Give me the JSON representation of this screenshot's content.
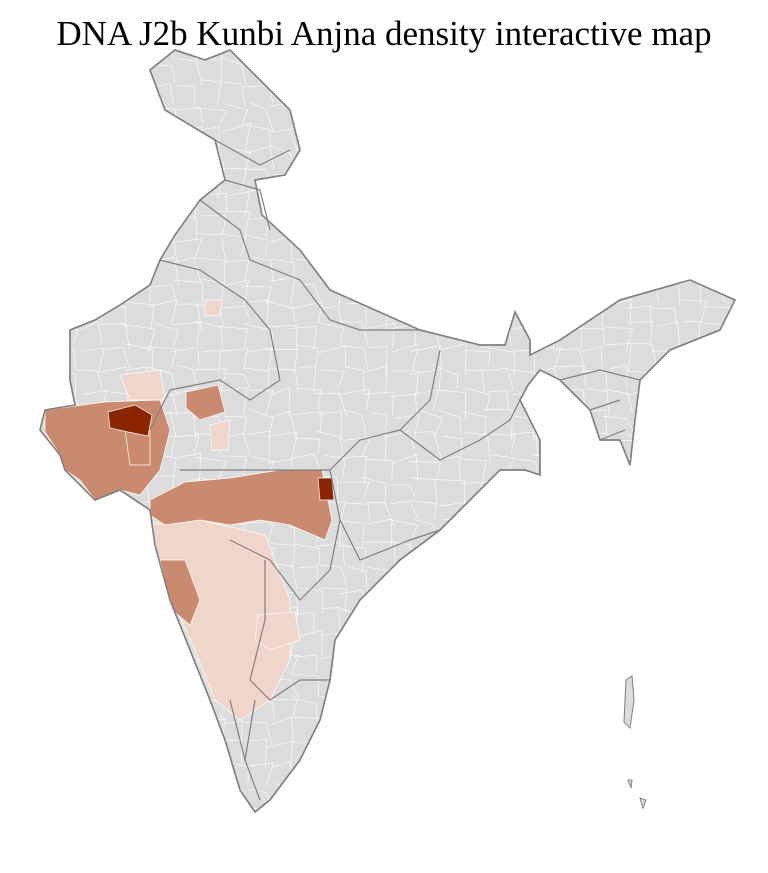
{
  "title": "DNA J2b Kunbi Anjna density interactive map",
  "colors": {
    "no_data": "#dcdcdc",
    "low": "#f0d6ca",
    "medium": "#c98a6f",
    "high": "#8b2500",
    "state_border": "#808080",
    "district_border": "#ffffff"
  }
}
